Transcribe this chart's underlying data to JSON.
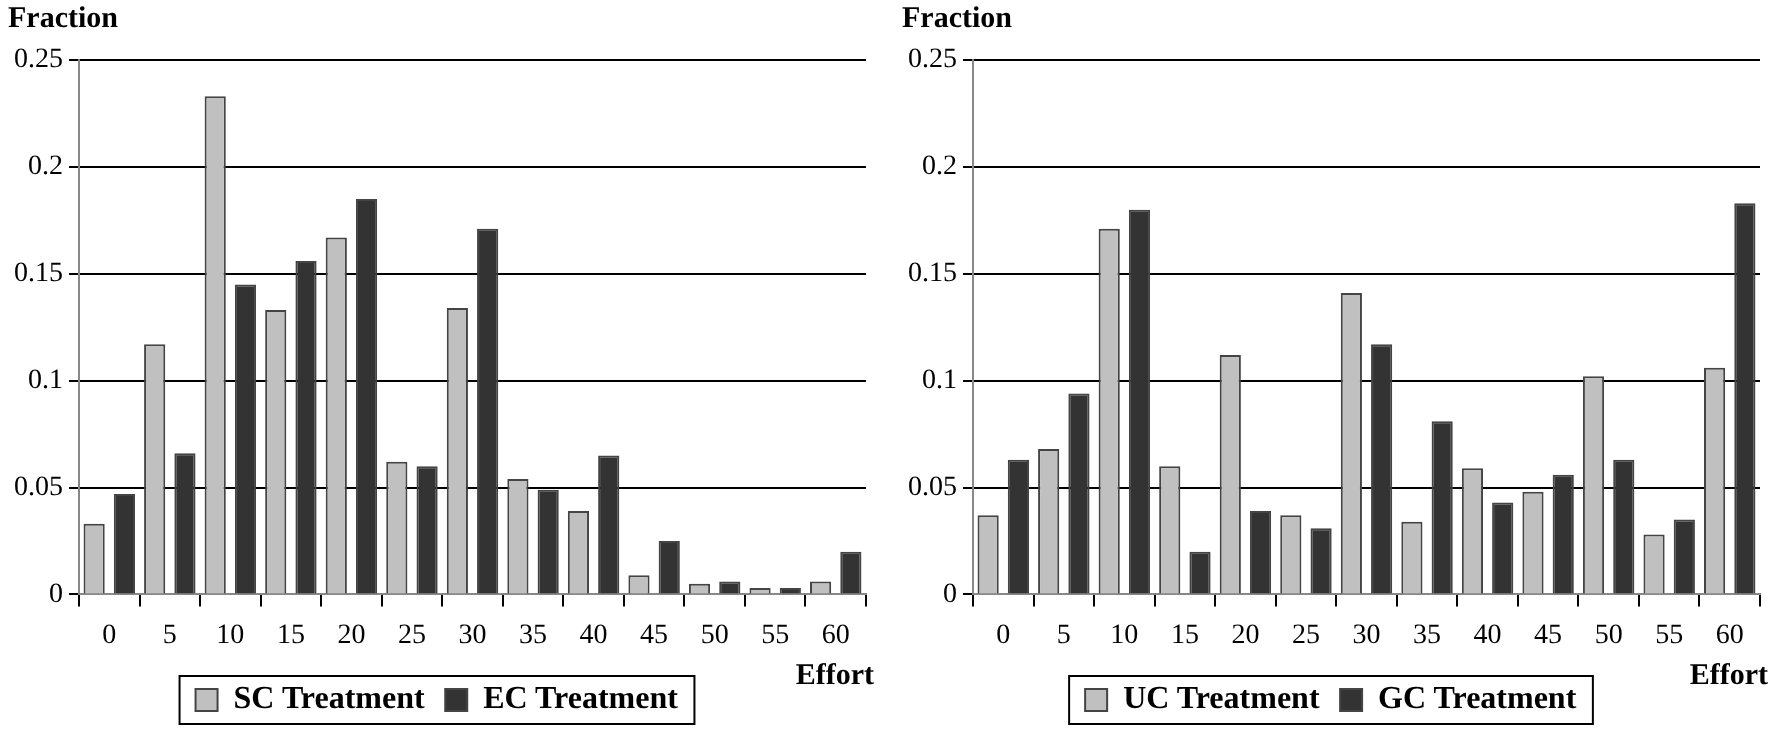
{
  "chart_data": [
    {
      "type": "bar",
      "ylabel": "Fraction",
      "xlabel": "Effort",
      "categories": [
        "0",
        "5",
        "10",
        "15",
        "20",
        "25",
        "30",
        "35",
        "40",
        "45",
        "50",
        "55",
        "60"
      ],
      "series": [
        {
          "name": "SC Treatment",
          "color": "#c0c0c0",
          "values": [
            0.033,
            0.117,
            0.233,
            0.133,
            0.167,
            0.062,
            0.134,
            0.054,
            0.039,
            0.009,
            0.005,
            0.003,
            0.006
          ]
        },
        {
          "name": "EC Treatment",
          "color": "#333333",
          "values": [
            0.047,
            0.066,
            0.145,
            0.156,
            0.185,
            0.06,
            0.171,
            0.049,
            0.065,
            0.025,
            0.006,
            0.003,
            0.02
          ]
        }
      ],
      "ylim": [
        0,
        0.25
      ],
      "yticks": [
        0,
        0.05,
        0.1,
        0.15,
        0.2,
        0.25
      ],
      "grid": "y",
      "legend": "bottom"
    },
    {
      "type": "bar",
      "ylabel": "Fraction",
      "xlabel": "Effort",
      "categories": [
        "0",
        "5",
        "10",
        "15",
        "20",
        "25",
        "30",
        "35",
        "40",
        "45",
        "50",
        "55",
        "60"
      ],
      "series": [
        {
          "name": "UC Treatment",
          "color": "#c0c0c0",
          "values": [
            0.037,
            0.068,
            0.171,
            0.06,
            0.112,
            0.037,
            0.141,
            0.034,
            0.059,
            0.048,
            0.102,
            0.028,
            0.106
          ]
        },
        {
          "name": "GC Treatment",
          "color": "#333333",
          "values": [
            0.063,
            0.094,
            0.18,
            0.02,
            0.039,
            0.031,
            0.117,
            0.081,
            0.043,
            0.056,
            0.063,
            0.035,
            0.183
          ]
        }
      ],
      "ylim": [
        0,
        0.25
      ],
      "yticks": [
        0,
        0.05,
        0.1,
        0.15,
        0.2,
        0.25
      ],
      "grid": "y",
      "legend": "bottom"
    }
  ]
}
